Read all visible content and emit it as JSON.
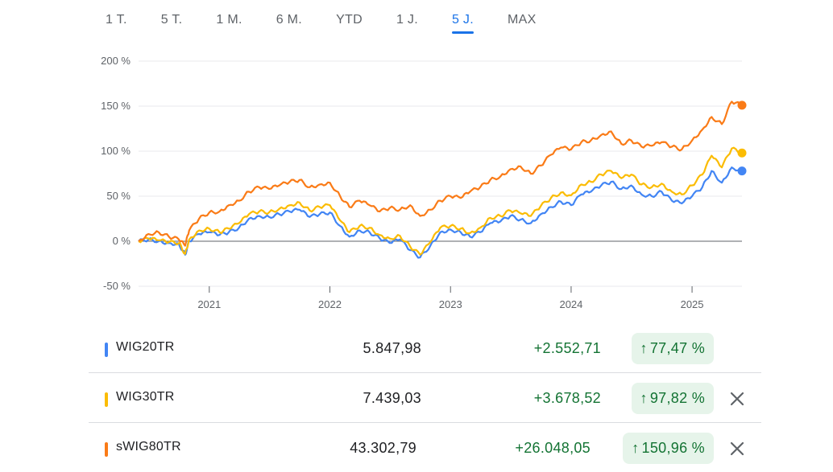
{
  "range_tabs": [
    {
      "label": "1 T.",
      "active": false
    },
    {
      "label": "5 T.",
      "active": false
    },
    {
      "label": "1 M.",
      "active": false
    },
    {
      "label": "6 M.",
      "active": false
    },
    {
      "label": "YTD",
      "active": false
    },
    {
      "label": "1 J.",
      "active": false
    },
    {
      "label": "5 J.",
      "active": true
    },
    {
      "label": "MAX",
      "active": false
    }
  ],
  "chart_data": {
    "type": "line",
    "y_ticks": [
      "200 %",
      "150 %",
      "100 %",
      "50 %",
      "0 %",
      "-50 %"
    ],
    "y_tick_values": [
      200,
      150,
      100,
      50,
      0,
      -50
    ],
    "ylim": [
      -50,
      200
    ],
    "x_ticks": [
      "2021",
      "2022",
      "2023",
      "2024",
      "2025"
    ],
    "x_range": [
      "2020-06",
      "2025-06"
    ],
    "grid": true,
    "series": [
      {
        "name": "WIG20TR",
        "color": "#4285f4",
        "points": [
          [
            "2020-06",
            0
          ],
          [
            "2020-07",
            2
          ],
          [
            "2020-08",
            0
          ],
          [
            "2020-09",
            -2
          ],
          [
            "2020-10",
            -3
          ],
          [
            "2020-10-20",
            -15
          ],
          [
            "2020-11",
            0
          ],
          [
            "2020-12",
            8
          ],
          [
            "2021-01",
            10
          ],
          [
            "2021-02",
            7
          ],
          [
            "2021-03",
            10
          ],
          [
            "2021-04",
            15
          ],
          [
            "2021-05",
            25
          ],
          [
            "2021-06",
            28
          ],
          [
            "2021-07",
            27
          ],
          [
            "2021-08",
            30
          ],
          [
            "2021-09",
            33
          ],
          [
            "2021-10",
            35
          ],
          [
            "2021-11",
            27
          ],
          [
            "2021-12",
            30
          ],
          [
            "2022-01",
            32
          ],
          [
            "2022-02",
            17
          ],
          [
            "2022-03",
            5
          ],
          [
            "2022-04",
            12
          ],
          [
            "2022-05",
            10
          ],
          [
            "2022-06",
            3
          ],
          [
            "2022-07",
            -2
          ],
          [
            "2022-08",
            2
          ],
          [
            "2022-09",
            -10
          ],
          [
            "2022-10",
            -18
          ],
          [
            "2022-11",
            -5
          ],
          [
            "2022-12",
            10
          ],
          [
            "2023-01",
            13
          ],
          [
            "2023-02",
            10
          ],
          [
            "2023-03",
            5
          ],
          [
            "2023-04",
            10
          ],
          [
            "2023-05",
            20
          ],
          [
            "2023-06",
            22
          ],
          [
            "2023-07",
            28
          ],
          [
            "2023-08",
            24
          ],
          [
            "2023-09",
            20
          ],
          [
            "2023-10",
            30
          ],
          [
            "2023-11",
            38
          ],
          [
            "2023-12",
            44
          ],
          [
            "2024-01",
            40
          ],
          [
            "2024-02",
            52
          ],
          [
            "2024-03",
            55
          ],
          [
            "2024-04",
            62
          ],
          [
            "2024-05",
            66
          ],
          [
            "2024-06",
            58
          ],
          [
            "2024-07",
            62
          ],
          [
            "2024-08",
            52
          ],
          [
            "2024-09",
            50
          ],
          [
            "2024-10",
            55
          ],
          [
            "2024-11",
            45
          ],
          [
            "2024-12",
            42
          ],
          [
            "2025-01",
            50
          ],
          [
            "2025-02",
            60
          ],
          [
            "2025-03",
            78
          ],
          [
            "2025-04",
            65
          ],
          [
            "2025-05",
            82
          ],
          [
            "2025-06",
            78
          ]
        ]
      },
      {
        "name": "WIG30TR",
        "color": "#fbbc04",
        "points": [
          [
            "2020-06",
            0
          ],
          [
            "2020-07",
            3
          ],
          [
            "2020-08",
            1
          ],
          [
            "2020-09",
            -1
          ],
          [
            "2020-10",
            -2
          ],
          [
            "2020-10-20",
            -14
          ],
          [
            "2020-11",
            2
          ],
          [
            "2020-12",
            12
          ],
          [
            "2021-01",
            14
          ],
          [
            "2021-02",
            10
          ],
          [
            "2021-03",
            14
          ],
          [
            "2021-04",
            20
          ],
          [
            "2021-05",
            30
          ],
          [
            "2021-06",
            33
          ],
          [
            "2021-07",
            32
          ],
          [
            "2021-08",
            36
          ],
          [
            "2021-09",
            40
          ],
          [
            "2021-10",
            43
          ],
          [
            "2021-11",
            34
          ],
          [
            "2021-12",
            38
          ],
          [
            "2022-01",
            40
          ],
          [
            "2022-02",
            23
          ],
          [
            "2022-03",
            10
          ],
          [
            "2022-04",
            17
          ],
          [
            "2022-05",
            15
          ],
          [
            "2022-06",
            7
          ],
          [
            "2022-07",
            3
          ],
          [
            "2022-08",
            6
          ],
          [
            "2022-09",
            -6
          ],
          [
            "2022-10",
            -15
          ],
          [
            "2022-11",
            -1
          ],
          [
            "2022-12",
            15
          ],
          [
            "2023-01",
            17
          ],
          [
            "2023-02",
            14
          ],
          [
            "2023-03",
            9
          ],
          [
            "2023-04",
            15
          ],
          [
            "2023-05",
            26
          ],
          [
            "2023-06",
            28
          ],
          [
            "2023-07",
            34
          ],
          [
            "2023-08",
            31
          ],
          [
            "2023-09",
            28
          ],
          [
            "2023-10",
            39
          ],
          [
            "2023-11",
            48
          ],
          [
            "2023-12",
            54
          ],
          [
            "2024-01",
            51
          ],
          [
            "2024-02",
            63
          ],
          [
            "2024-03",
            66
          ],
          [
            "2024-04",
            74
          ],
          [
            "2024-05",
            78
          ],
          [
            "2024-06",
            70
          ],
          [
            "2024-07",
            74
          ],
          [
            "2024-08",
            63
          ],
          [
            "2024-09",
            60
          ],
          [
            "2024-10",
            64
          ],
          [
            "2024-11",
            55
          ],
          [
            "2024-12",
            52
          ],
          [
            "2025-01",
            62
          ],
          [
            "2025-02",
            74
          ],
          [
            "2025-03",
            95
          ],
          [
            "2025-04",
            82
          ],
          [
            "2025-05",
            103
          ],
          [
            "2025-06",
            98
          ]
        ]
      },
      {
        "name": "sWIG80TR",
        "color": "#fa7b17",
        "points": [
          [
            "2020-06",
            0
          ],
          [
            "2020-07",
            8
          ],
          [
            "2020-08",
            10
          ],
          [
            "2020-09",
            5
          ],
          [
            "2020-10",
            2
          ],
          [
            "2020-10-20",
            -5
          ],
          [
            "2020-11",
            12
          ],
          [
            "2020-12",
            25
          ],
          [
            "2021-01",
            32
          ],
          [
            "2021-02",
            33
          ],
          [
            "2021-03",
            40
          ],
          [
            "2021-04",
            45
          ],
          [
            "2021-05",
            55
          ],
          [
            "2021-06",
            60
          ],
          [
            "2021-07",
            58
          ],
          [
            "2021-08",
            62
          ],
          [
            "2021-09",
            66
          ],
          [
            "2021-10",
            68
          ],
          [
            "2021-11",
            60
          ],
          [
            "2021-12",
            63
          ],
          [
            "2022-01",
            65
          ],
          [
            "2022-02",
            50
          ],
          [
            "2022-03",
            38
          ],
          [
            "2022-04",
            45
          ],
          [
            "2022-05",
            40
          ],
          [
            "2022-06",
            33
          ],
          [
            "2022-07",
            37
          ],
          [
            "2022-08",
            35
          ],
          [
            "2022-09",
            40
          ],
          [
            "2022-10",
            28
          ],
          [
            "2022-11",
            35
          ],
          [
            "2022-12",
            45
          ],
          [
            "2023-01",
            50
          ],
          [
            "2023-02",
            48
          ],
          [
            "2023-03",
            55
          ],
          [
            "2023-04",
            60
          ],
          [
            "2023-05",
            68
          ],
          [
            "2023-06",
            72
          ],
          [
            "2023-07",
            80
          ],
          [
            "2023-08",
            83
          ],
          [
            "2023-09",
            75
          ],
          [
            "2023-10",
            84
          ],
          [
            "2023-11",
            96
          ],
          [
            "2023-12",
            104
          ],
          [
            "2024-01",
            102
          ],
          [
            "2024-02",
            110
          ],
          [
            "2024-03",
            112
          ],
          [
            "2024-04",
            118
          ],
          [
            "2024-05",
            122
          ],
          [
            "2024-06",
            108
          ],
          [
            "2024-07",
            112
          ],
          [
            "2024-08",
            105
          ],
          [
            "2024-09",
            106
          ],
          [
            "2024-10",
            110
          ],
          [
            "2024-11",
            105
          ],
          [
            "2024-12",
            102
          ],
          [
            "2025-01",
            112
          ],
          [
            "2025-02",
            124
          ],
          [
            "2025-03",
            138
          ],
          [
            "2025-04",
            130
          ],
          [
            "2025-05",
            155
          ],
          [
            "2025-06",
            151
          ]
        ]
      }
    ]
  },
  "legend_rows": [
    {
      "name": "WIG20TR",
      "price": "5.847,98",
      "change": "+2.552,71",
      "pct": "77,47 %",
      "arrow": "↑",
      "color": "#4285f4",
      "removable": false
    },
    {
      "name": "WIG30TR",
      "price": "7.439,03",
      "change": "+3.678,52",
      "pct": "97,82 %",
      "arrow": "↑",
      "color": "#fbbc04",
      "removable": true
    },
    {
      "name": "sWIG80TR",
      "price": "43.302,79",
      "change": "+26.048,05",
      "pct": "150,96 %",
      "arrow": "↑",
      "color": "#fa7b17",
      "removable": true
    }
  ],
  "icons": {
    "remove": "close-icon",
    "up": "arrow-up-icon"
  }
}
